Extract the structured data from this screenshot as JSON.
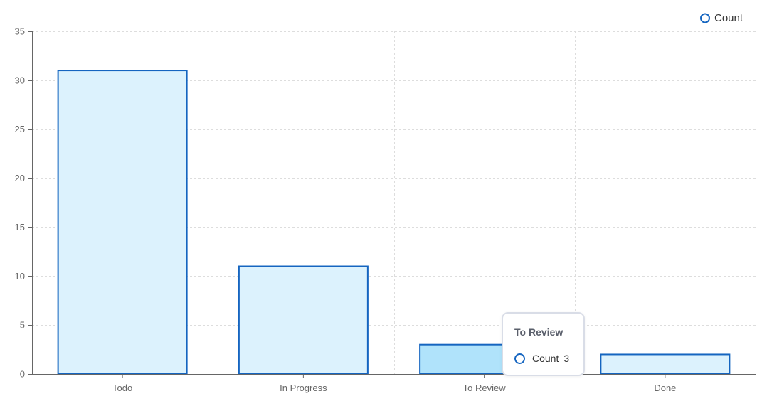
{
  "chart_data": {
    "type": "bar",
    "categories": [
      "Todo",
      "In Progress",
      "To Review",
      "Done"
    ],
    "series": [
      {
        "name": "Count",
        "values": [
          31,
          11,
          3,
          2
        ]
      }
    ],
    "ylim": [
      0,
      35
    ],
    "yticks": [
      0,
      5,
      10,
      15,
      20,
      25,
      30,
      35
    ],
    "grid": true,
    "legend_position": "top-right",
    "highlighted_category": "To Review",
    "colors": {
      "bar_fill": "#dcf2fd",
      "bar_fill_highlight": "#b0e3fb",
      "bar_stroke": "#1565c0",
      "grid": "#dddddd",
      "axis": "#666666",
      "tick_text": "#666666"
    }
  },
  "legend": {
    "label": "Count",
    "icon": "circle-outline-icon"
  },
  "tooltip": {
    "title": "To Review",
    "series_name": "Count",
    "value": "3"
  }
}
